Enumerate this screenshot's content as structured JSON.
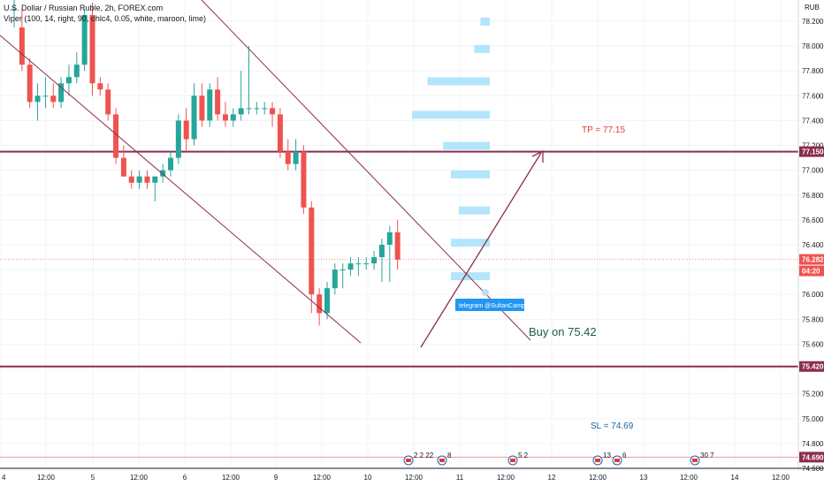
{
  "legend": {
    "title": "U.S. Dollar / Russian Ruble, 2h, FOREX.com",
    "indicator": "Viper (100, 14, right, 90, ohlc4, 0.05, white, maroon, lime)"
  },
  "currency": "RUB",
  "annotations": {
    "tp": "TP = 77.15",
    "buy": "Buy on 75.42",
    "sl": "SL = 74.69",
    "telegram": "telegram @SultanCamp"
  },
  "price_labels": {
    "tp_level": "77.150",
    "current": "76.282",
    "countdown": "04:20",
    "buy_level": "75.420",
    "sl_level": "74.690"
  },
  "event_flags": [
    {
      "label": "2 2 22"
    },
    {
      "label": "8"
    },
    {
      "label": "5 2"
    },
    {
      "label": "13"
    },
    {
      "label": "6"
    },
    {
      "label": "30 7"
    }
  ],
  "colors": {
    "up": "#26a69a",
    "down": "#ef5350",
    "channel": "#8b2e4b",
    "level_line": "#8b2e4b",
    "tp_text": "#e53935",
    "buy_text": "#1b5e3f",
    "sl_text": "#1e5fa8",
    "profile": "#b3e5fc",
    "telegram_bg": "#2196f3"
  },
  "chart_data": {
    "type": "candlestick",
    "y_range": [
      74.6,
      78.35
    ],
    "y_ticks": [
      "78.200",
      "78.000",
      "77.800",
      "77.600",
      "77.400",
      "77.200",
      "77.000",
      "76.800",
      "76.600",
      "76.400",
      "76.200",
      "76.000",
      "75.800",
      "75.600",
      "75.400",
      "75.200",
      "75.000",
      "74.800",
      "74.600"
    ],
    "x_ticks": [
      "4",
      "12:00",
      "5",
      "12:00",
      "6",
      "12:00",
      "9",
      "12:00",
      "10",
      "12:00",
      "11",
      "12:00",
      "12",
      "12:00",
      "13",
      "12:00",
      "14",
      "12:00"
    ],
    "horizontal_levels": [
      77.15,
      75.42,
      74.69
    ],
    "current_price": 76.282,
    "candles": [
      {
        "o": 78.3,
        "h": 78.42,
        "l": 78.15,
        "c": 78.3
      },
      {
        "o": 78.15,
        "h": 78.3,
        "l": 77.8,
        "c": 77.85
      },
      {
        "o": 77.85,
        "h": 77.9,
        "l": 77.5,
        "c": 77.55
      },
      {
        "o": 77.55,
        "h": 77.7,
        "l": 77.4,
        "c": 77.6
      },
      {
        "o": 77.6,
        "h": 77.75,
        "l": 77.5,
        "c": 77.6
      },
      {
        "o": 77.6,
        "h": 77.7,
        "l": 77.5,
        "c": 77.55
      },
      {
        "o": 77.55,
        "h": 77.75,
        "l": 77.5,
        "c": 77.7
      },
      {
        "o": 77.7,
        "h": 77.85,
        "l": 77.6,
        "c": 77.75
      },
      {
        "o": 77.75,
        "h": 77.95,
        "l": 77.7,
        "c": 77.85
      },
      {
        "o": 77.85,
        "h": 78.3,
        "l": 77.8,
        "c": 78.25
      },
      {
        "o": 78.25,
        "h": 78.35,
        "l": 77.6,
        "c": 77.7
      },
      {
        "o": 77.7,
        "h": 77.75,
        "l": 77.6,
        "c": 77.65
      },
      {
        "o": 77.65,
        "h": 77.7,
        "l": 77.4,
        "c": 77.45
      },
      {
        "o": 77.45,
        "h": 77.5,
        "l": 77.05,
        "c": 77.1
      },
      {
        "o": 77.1,
        "h": 77.2,
        "l": 76.95,
        "c": 76.95
      },
      {
        "o": 76.95,
        "h": 77.0,
        "l": 76.85,
        "c": 76.9
      },
      {
        "o": 76.9,
        "h": 77.0,
        "l": 76.85,
        "c": 76.95
      },
      {
        "o": 76.95,
        "h": 77.0,
        "l": 76.85,
        "c": 76.9
      },
      {
        "o": 76.9,
        "h": 76.95,
        "l": 76.75,
        "c": 76.95
      },
      {
        "o": 76.95,
        "h": 77.05,
        "l": 76.9,
        "c": 77.0
      },
      {
        "o": 77.0,
        "h": 77.15,
        "l": 76.95,
        "c": 77.1
      },
      {
        "o": 77.1,
        "h": 77.45,
        "l": 77.05,
        "c": 77.4
      },
      {
        "o": 77.4,
        "h": 77.5,
        "l": 77.15,
        "c": 77.25
      },
      {
        "o": 77.25,
        "h": 77.7,
        "l": 77.2,
        "c": 77.6
      },
      {
        "o": 77.6,
        "h": 77.7,
        "l": 77.35,
        "c": 77.4
      },
      {
        "o": 77.4,
        "h": 77.7,
        "l": 77.35,
        "c": 77.65
      },
      {
        "o": 77.65,
        "h": 77.75,
        "l": 77.4,
        "c": 77.45
      },
      {
        "o": 77.45,
        "h": 77.55,
        "l": 77.35,
        "c": 77.4
      },
      {
        "o": 77.4,
        "h": 77.5,
        "l": 77.35,
        "c": 77.45
      },
      {
        "o": 77.45,
        "h": 77.8,
        "l": 77.4,
        "c": 77.5
      },
      {
        "o": 77.5,
        "h": 78.0,
        "l": 77.45,
        "c": 77.5
      },
      {
        "o": 77.5,
        "h": 77.55,
        "l": 77.45,
        "c": 77.5
      },
      {
        "o": 77.5,
        "h": 77.55,
        "l": 77.45,
        "c": 77.5
      },
      {
        "o": 77.5,
        "h": 77.55,
        "l": 77.35,
        "c": 77.45
      },
      {
        "o": 77.45,
        "h": 77.5,
        "l": 77.1,
        "c": 77.15
      },
      {
        "o": 77.15,
        "h": 77.25,
        "l": 77.0,
        "c": 77.05
      },
      {
        "o": 77.05,
        "h": 77.25,
        "l": 77.0,
        "c": 77.15
      },
      {
        "o": 77.15,
        "h": 77.2,
        "l": 76.65,
        "c": 76.7
      },
      {
        "o": 76.7,
        "h": 76.75,
        "l": 75.85,
        "c": 76.0
      },
      {
        "o": 76.0,
        "h": 76.05,
        "l": 75.75,
        "c": 75.85
      },
      {
        "o": 75.85,
        "h": 76.1,
        "l": 75.8,
        "c": 76.05
      },
      {
        "o": 76.05,
        "h": 76.25,
        "l": 76.0,
        "c": 76.2
      },
      {
        "o": 76.2,
        "h": 76.25,
        "l": 76.05,
        "c": 76.2
      },
      {
        "o": 76.2,
        "h": 76.3,
        "l": 76.15,
        "c": 76.25
      },
      {
        "o": 76.25,
        "h": 76.3,
        "l": 76.15,
        "c": 76.25
      },
      {
        "o": 76.25,
        "h": 76.3,
        "l": 76.2,
        "c": 76.25
      },
      {
        "o": 76.25,
        "h": 76.35,
        "l": 76.2,
        "c": 76.3
      },
      {
        "o": 76.3,
        "h": 76.45,
        "l": 76.1,
        "c": 76.4
      },
      {
        "o": 76.4,
        "h": 76.55,
        "l": 76.1,
        "c": 76.5
      },
      {
        "o": 76.5,
        "h": 76.6,
        "l": 76.2,
        "c": 76.28
      }
    ],
    "volume_profile_levels": [
      78.2,
      77.98,
      77.72,
      77.45,
      77.2,
      76.97,
      76.68,
      76.42,
      76.15
    ],
    "volume_profile_relative": [
      0.12,
      0.2,
      0.8,
      1.0,
      0.6,
      0.5,
      0.4,
      0.5,
      0.5
    ]
  }
}
